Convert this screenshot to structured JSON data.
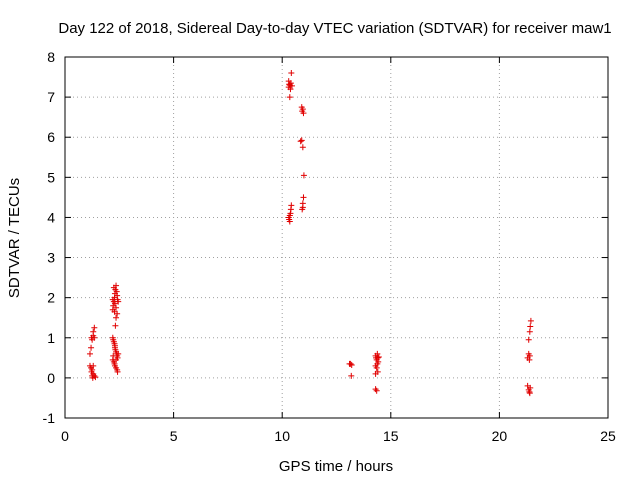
{
  "chart_data": {
    "type": "scatter",
    "title": "Day 122 of 2018, Sidereal Day-to-day VTEC variation (SDTVAR) for receiver maw1",
    "xlabel": "GPS time / hours",
    "ylabel": "SDTVAR / TECUs",
    "xlim": [
      0,
      25
    ],
    "ylim": [
      -1,
      8
    ],
    "xticks": [
      0,
      5,
      10,
      15,
      20,
      25
    ],
    "yticks": [
      -1,
      0,
      1,
      2,
      3,
      4,
      5,
      6,
      7,
      8
    ],
    "grid": true,
    "marker": "plus",
    "color": "#e00000",
    "series": [
      {
        "name": "maw1",
        "points": [
          [
            1.15,
            0.6
          ],
          [
            1.2,
            0.75
          ],
          [
            1.22,
            1.0
          ],
          [
            1.25,
            0.95
          ],
          [
            1.3,
            1.05
          ],
          [
            1.3,
            1.15
          ],
          [
            1.35,
            1.25
          ],
          [
            1.35,
            1.0
          ],
          [
            1.15,
            0.3
          ],
          [
            1.2,
            0.25
          ],
          [
            1.22,
            0.15
          ],
          [
            1.25,
            0.05
          ],
          [
            1.28,
            0.0
          ],
          [
            1.3,
            0.1
          ],
          [
            1.35,
            0.05
          ],
          [
            1.4,
            0.02
          ],
          [
            1.25,
            0.2
          ],
          [
            1.3,
            0.3
          ],
          [
            2.2,
            1.7
          ],
          [
            2.22,
            1.8
          ],
          [
            2.25,
            1.9
          ],
          [
            2.28,
            2.0
          ],
          [
            2.3,
            2.1
          ],
          [
            2.32,
            2.2
          ],
          [
            2.35,
            2.3
          ],
          [
            2.38,
            2.15
          ],
          [
            2.4,
            2.05
          ],
          [
            2.42,
            1.95
          ],
          [
            2.3,
            1.85
          ],
          [
            2.35,
            1.75
          ],
          [
            2.4,
            1.6
          ],
          [
            2.35,
            1.5
          ],
          [
            2.32,
            1.3
          ],
          [
            2.25,
            2.25
          ],
          [
            2.28,
            1.65
          ],
          [
            2.45,
            1.9
          ],
          [
            2.2,
            1.95
          ],
          [
            2.2,
            1.0
          ],
          [
            2.22,
            0.95
          ],
          [
            2.25,
            0.9
          ],
          [
            2.28,
            0.85
          ],
          [
            2.3,
            0.8
          ],
          [
            2.32,
            0.7
          ],
          [
            2.35,
            0.65
          ],
          [
            2.38,
            0.6
          ],
          [
            2.4,
            0.55
          ],
          [
            2.42,
            0.5
          ],
          [
            2.2,
            0.45
          ],
          [
            2.25,
            0.4
          ],
          [
            2.28,
            0.35
          ],
          [
            2.3,
            0.3
          ],
          [
            2.35,
            0.25
          ],
          [
            2.4,
            0.2
          ],
          [
            2.42,
            0.15
          ],
          [
            2.45,
            0.6
          ],
          [
            2.22,
            0.55
          ],
          [
            2.3,
            0.75
          ],
          [
            2.35,
            0.45
          ],
          [
            10.3,
            7.25
          ],
          [
            10.35,
            7.3
          ],
          [
            10.38,
            7.2
          ],
          [
            10.4,
            7.35
          ],
          [
            10.42,
            7.6
          ],
          [
            10.35,
            7.0
          ],
          [
            10.3,
            7.4
          ],
          [
            10.45,
            7.28
          ],
          [
            10.32,
            7.32
          ],
          [
            10.9,
            6.75
          ],
          [
            10.92,
            6.65
          ],
          [
            10.95,
            6.7
          ],
          [
            10.98,
            6.6
          ],
          [
            10.85,
            5.9
          ],
          [
            10.9,
            5.92
          ],
          [
            10.95,
            5.75
          ],
          [
            11.0,
            5.05
          ],
          [
            10.3,
            4.0
          ],
          [
            10.32,
            3.95
          ],
          [
            10.35,
            3.9
          ],
          [
            10.38,
            4.1
          ],
          [
            10.4,
            4.2
          ],
          [
            10.42,
            4.3
          ],
          [
            10.35,
            4.05
          ],
          [
            10.92,
            4.2
          ],
          [
            10.95,
            4.35
          ],
          [
            10.98,
            4.5
          ],
          [
            10.95,
            4.25
          ],
          [
            13.1,
            0.35
          ],
          [
            13.15,
            0.35
          ],
          [
            13.2,
            0.32
          ],
          [
            13.18,
            0.05
          ],
          [
            14.3,
            0.55
          ],
          [
            14.32,
            0.5
          ],
          [
            14.35,
            0.45
          ],
          [
            14.38,
            0.6
          ],
          [
            14.4,
            0.5
          ],
          [
            14.42,
            0.4
          ],
          [
            14.3,
            0.3
          ],
          [
            14.35,
            0.25
          ],
          [
            14.38,
            0.35
          ],
          [
            14.4,
            0.15
          ],
          [
            14.3,
            0.1
          ],
          [
            14.45,
            0.52
          ],
          [
            14.3,
            -0.28
          ],
          [
            14.35,
            -0.32
          ],
          [
            21.3,
            0.5
          ],
          [
            21.35,
            0.6
          ],
          [
            21.38,
            0.45
          ],
          [
            21.4,
            0.55
          ],
          [
            21.35,
            0.95
          ],
          [
            21.4,
            1.15
          ],
          [
            21.42,
            1.28
          ],
          [
            21.45,
            1.42
          ],
          [
            21.3,
            -0.2
          ],
          [
            21.35,
            -0.3
          ],
          [
            21.38,
            -0.35
          ],
          [
            21.4,
            -0.38
          ],
          [
            21.42,
            -0.25
          ]
        ]
      }
    ]
  }
}
